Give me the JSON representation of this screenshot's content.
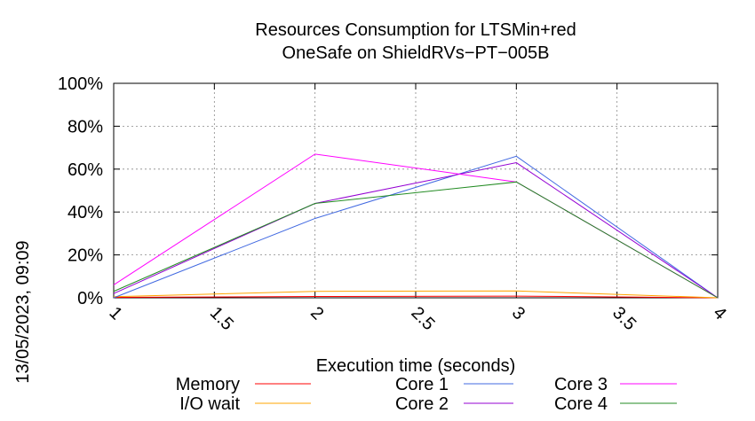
{
  "chart_data": {
    "type": "line",
    "title": [
      "Resources Consumption for LTSMin+red",
      "OneSafe on ShieldRVs−PT−005B"
    ],
    "xlabel": "Execution time (seconds)",
    "ylabel": "",
    "side_label": "13/05/2023, 09:09",
    "xlim": [
      1,
      4
    ],
    "ylim": [
      0,
      100
    ],
    "x_ticks": [
      1,
      1.5,
      2,
      2.5,
      3,
      3.5,
      4
    ],
    "x_tick_labels": [
      "1",
      "1.5",
      "2",
      "2.5",
      "3",
      "3.5",
      "4"
    ],
    "y_ticks": [
      0,
      20,
      40,
      60,
      80,
      100
    ],
    "y_tick_labels": [
      "0%",
      "20%",
      "40%",
      "60%",
      "80%",
      "100%"
    ],
    "grid": true,
    "legend_position": "bottom",
    "series": [
      {
        "name": "Memory",
        "color": "#ff0000",
        "x": [
          1,
          2,
          3,
          4
        ],
        "y": [
          0.2,
          0.6,
          0.8,
          0
        ]
      },
      {
        "name": "I/O wait",
        "color": "#ffa500",
        "x": [
          1,
          2,
          3,
          4
        ],
        "y": [
          0.5,
          3,
          3.2,
          0
        ]
      },
      {
        "name": "Core 1",
        "color": "#4169e1",
        "x": [
          1,
          2,
          3,
          4
        ],
        "y": [
          0,
          37,
          66,
          0
        ]
      },
      {
        "name": "Core 2",
        "color": "#9400d3",
        "x": [
          1,
          2,
          3,
          4
        ],
        "y": [
          2,
          44,
          63,
          0
        ]
      },
      {
        "name": "Core 3",
        "color": "#ff00ff",
        "x": [
          1,
          2,
          3,
          4
        ],
        "y": [
          6,
          67,
          54,
          0
        ]
      },
      {
        "name": "Core 4",
        "color": "#228b22",
        "x": [
          1,
          2,
          3,
          4
        ],
        "y": [
          3,
          44,
          54,
          0
        ]
      }
    ]
  }
}
